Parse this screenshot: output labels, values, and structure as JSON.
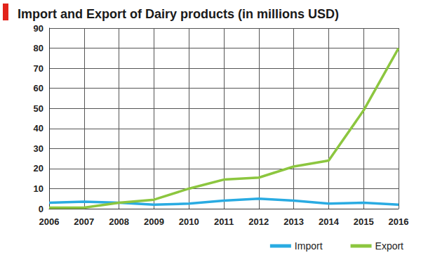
{
  "chart_data": {
    "type": "line",
    "title": "Import and Export of Dairy products (in millions USD)",
    "categories": [
      "2006",
      "2007",
      "2008",
      "2009",
      "2010",
      "2011",
      "2012",
      "2013",
      "2014",
      "2015",
      "2016"
    ],
    "series": [
      {
        "name": "Import",
        "color": "#29abe2",
        "values": [
          3,
          3.5,
          3,
          2,
          2.5,
          4,
          5,
          4,
          2.5,
          3,
          2
        ]
      },
      {
        "name": "Export",
        "color": "#8cc63f",
        "values": [
          0.5,
          0.5,
          3,
          4.5,
          10,
          14.5,
          15.5,
          21,
          24,
          49,
          80
        ]
      }
    ],
    "ylim": [
      0,
      90
    ],
    "yticks": [
      0,
      10,
      20,
      30,
      40,
      50,
      60,
      70,
      80,
      90
    ],
    "grid": true,
    "legend": "bottom-right"
  }
}
